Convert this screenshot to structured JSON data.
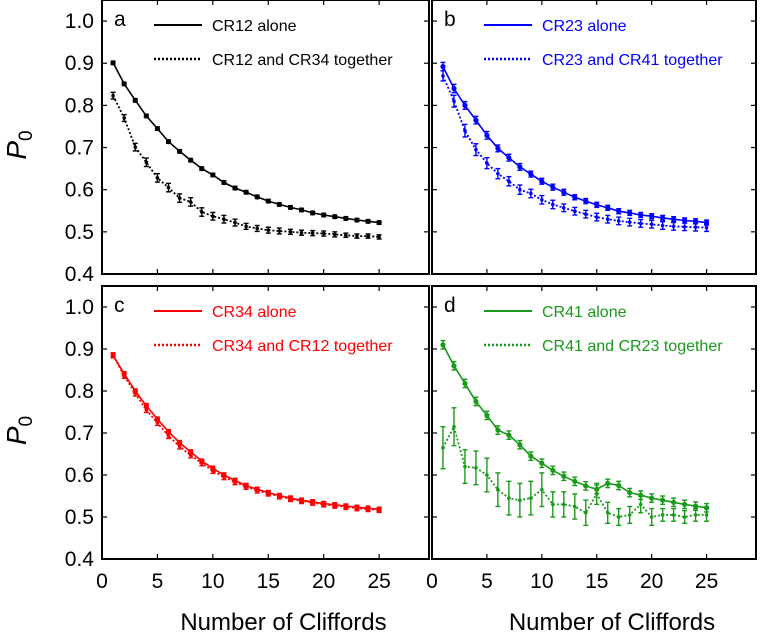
{
  "chart_data": [
    {
      "type": "line",
      "panel_label": "a",
      "color": "#000000",
      "legend_position": "top-right",
      "ylabel": "P",
      "ylabel_sub": "0",
      "xlabel": "",
      "xlim": [
        0,
        29.5
      ],
      "ylim": [
        0.4,
        1.05
      ],
      "x_ticks": [],
      "y_ticks": [
        "1.0",
        "0.9",
        "0.8",
        "0.7",
        "0.6",
        "0.5",
        "0.4"
      ],
      "series": [
        {
          "name": "CR12 alone",
          "style": "solid",
          "x": [
            1,
            2,
            3,
            4,
            5,
            6,
            7,
            8,
            9,
            10,
            11,
            12,
            13,
            14,
            15,
            16,
            17,
            18,
            19,
            20,
            21,
            22,
            23,
            24,
            25
          ],
          "y": [
            0.901,
            0.851,
            0.812,
            0.775,
            0.745,
            0.714,
            0.691,
            0.67,
            0.65,
            0.635,
            0.617,
            0.604,
            0.594,
            0.583,
            0.573,
            0.565,
            0.558,
            0.552,
            0.545,
            0.54,
            0.536,
            0.532,
            0.528,
            0.525,
            0.522
          ],
          "err": [
            0.004,
            0.004,
            0.004,
            0.004,
            0.004,
            0.004,
            0.004,
            0.004,
            0.004,
            0.004,
            0.004,
            0.004,
            0.004,
            0.004,
            0.004,
            0.004,
            0.004,
            0.004,
            0.004,
            0.004,
            0.004,
            0.004,
            0.004,
            0.004,
            0.004
          ]
        },
        {
          "name": "CR12 and CR34 together",
          "style": "dotted",
          "x": [
            1,
            2,
            3,
            4,
            5,
            6,
            7,
            8,
            9,
            10,
            11,
            12,
            13,
            14,
            15,
            16,
            17,
            18,
            19,
            20,
            21,
            22,
            23,
            24,
            25
          ],
          "y": [
            0.823,
            0.77,
            0.701,
            0.665,
            0.628,
            0.605,
            0.58,
            0.571,
            0.547,
            0.537,
            0.53,
            0.522,
            0.513,
            0.508,
            0.504,
            0.502,
            0.5,
            0.498,
            0.497,
            0.496,
            0.494,
            0.492,
            0.49,
            0.49,
            0.488
          ],
          "err": [
            0.008,
            0.008,
            0.009,
            0.01,
            0.01,
            0.01,
            0.01,
            0.01,
            0.01,
            0.009,
            0.009,
            0.008,
            0.007,
            0.007,
            0.007,
            0.007,
            0.006,
            0.006,
            0.006,
            0.006,
            0.006,
            0.005,
            0.005,
            0.005,
            0.005
          ]
        }
      ]
    },
    {
      "type": "line",
      "panel_label": "b",
      "color": "#0000ff",
      "legend_position": "top-right",
      "ylabel": "",
      "xlabel": "",
      "xlim": [
        0,
        29.5
      ],
      "ylim": [
        0.4,
        1.05
      ],
      "x_ticks": [],
      "y_ticks": [],
      "series": [
        {
          "name": "CR23 alone",
          "style": "solid",
          "x": [
            1,
            2,
            3,
            4,
            5,
            6,
            7,
            8,
            9,
            10,
            11,
            12,
            13,
            14,
            15,
            16,
            17,
            18,
            19,
            20,
            21,
            22,
            23,
            24,
            25
          ],
          "y": [
            0.892,
            0.84,
            0.8,
            0.765,
            0.729,
            0.698,
            0.676,
            0.654,
            0.637,
            0.62,
            0.606,
            0.594,
            0.582,
            0.573,
            0.564,
            0.557,
            0.549,
            0.545,
            0.54,
            0.537,
            0.533,
            0.53,
            0.527,
            0.525,
            0.522
          ],
          "err": [
            0.01,
            0.01,
            0.009,
            0.009,
            0.009,
            0.008,
            0.008,
            0.008,
            0.007,
            0.007,
            0.007,
            0.007,
            0.006,
            0.006,
            0.006,
            0.006,
            0.006,
            0.006,
            0.006,
            0.006,
            0.006,
            0.006,
            0.006,
            0.006,
            0.006
          ]
        },
        {
          "name": "CR23 and CR41 together",
          "style": "dotted",
          "x": [
            1,
            2,
            3,
            4,
            5,
            6,
            7,
            8,
            9,
            10,
            11,
            12,
            13,
            14,
            15,
            16,
            17,
            18,
            19,
            20,
            21,
            22,
            23,
            24,
            25
          ],
          "y": [
            0.87,
            0.81,
            0.74,
            0.695,
            0.663,
            0.638,
            0.62,
            0.6,
            0.591,
            0.576,
            0.565,
            0.557,
            0.549,
            0.542,
            0.535,
            0.53,
            0.526,
            0.523,
            0.52,
            0.518,
            0.515,
            0.513,
            0.512,
            0.511,
            0.51
          ],
          "err": [
            0.012,
            0.014,
            0.015,
            0.014,
            0.013,
            0.012,
            0.011,
            0.011,
            0.01,
            0.01,
            0.01,
            0.009,
            0.009,
            0.009,
            0.009,
            0.009,
            0.009,
            0.009,
            0.009,
            0.009,
            0.009,
            0.009,
            0.009,
            0.009,
            0.009
          ]
        }
      ]
    },
    {
      "type": "line",
      "panel_label": "c",
      "color": "#ff0000",
      "legend_position": "top-right",
      "ylabel": "P",
      "ylabel_sub": "0",
      "xlabel": "Number of Cliffords",
      "xlim": [
        0,
        29.5
      ],
      "ylim": [
        0.4,
        1.05
      ],
      "x_ticks": [
        "0",
        "5",
        "10",
        "15",
        "20",
        "25"
      ],
      "y_ticks": [
        "1.0",
        "0.9",
        "0.8",
        "0.7",
        "0.6",
        "0.5",
        "0.4"
      ],
      "series": [
        {
          "name": "CR34 alone",
          "style": "solid",
          "x": [
            1,
            2,
            3,
            4,
            5,
            6,
            7,
            8,
            9,
            10,
            11,
            12,
            13,
            14,
            15,
            16,
            17,
            18,
            19,
            20,
            21,
            22,
            23,
            24,
            25
          ],
          "y": [
            0.885,
            0.841,
            0.8,
            0.765,
            0.733,
            0.703,
            0.677,
            0.655,
            0.633,
            0.616,
            0.6,
            0.587,
            0.575,
            0.566,
            0.558,
            0.551,
            0.545,
            0.54,
            0.536,
            0.532,
            0.529,
            0.526,
            0.523,
            0.521,
            0.518
          ],
          "err": [
            0.005,
            0.005,
            0.005,
            0.005,
            0.005,
            0.005,
            0.005,
            0.005,
            0.005,
            0.005,
            0.005,
            0.005,
            0.005,
            0.005,
            0.005,
            0.005,
            0.005,
            0.005,
            0.005,
            0.005,
            0.005,
            0.005,
            0.005,
            0.005,
            0.005
          ]
        },
        {
          "name": "CR34 and CR12 together",
          "style": "dotted",
          "x": [
            1,
            2,
            3,
            4,
            5,
            6,
            7,
            8,
            9,
            10,
            11,
            12,
            13,
            14,
            15,
            16,
            17,
            18,
            19,
            20,
            21,
            22,
            23,
            24,
            25
          ],
          "y": [
            0.885,
            0.836,
            0.794,
            0.755,
            0.724,
            0.693,
            0.668,
            0.647,
            0.628,
            0.61,
            0.595,
            0.583,
            0.572,
            0.563,
            0.556,
            0.549,
            0.543,
            0.538,
            0.534,
            0.53,
            0.527,
            0.524,
            0.521,
            0.519,
            0.517
          ],
          "err": [
            0.006,
            0.006,
            0.006,
            0.006,
            0.006,
            0.006,
            0.006,
            0.006,
            0.006,
            0.006,
            0.006,
            0.006,
            0.006,
            0.006,
            0.006,
            0.006,
            0.006,
            0.006,
            0.006,
            0.006,
            0.006,
            0.006,
            0.006,
            0.006,
            0.006
          ]
        }
      ]
    },
    {
      "type": "line",
      "panel_label": "d",
      "color": "#1a9a1a",
      "legend_position": "top-right",
      "ylabel": "",
      "xlabel": "Number of Cliffords",
      "xlim": [
        0,
        29.5
      ],
      "ylim": [
        0.4,
        1.05
      ],
      "x_ticks": [
        "0",
        "5",
        "10",
        "15",
        "20",
        "25"
      ],
      "y_ticks": [],
      "series": [
        {
          "name": "CR41 alone",
          "style": "solid",
          "x": [
            1,
            2,
            3,
            4,
            5,
            6,
            7,
            8,
            9,
            10,
            11,
            12,
            13,
            14,
            15,
            16,
            17,
            18,
            19,
            20,
            21,
            22,
            23,
            24,
            25
          ],
          "y": [
            0.91,
            0.86,
            0.818,
            0.775,
            0.742,
            0.707,
            0.695,
            0.672,
            0.645,
            0.628,
            0.611,
            0.597,
            0.585,
            0.574,
            0.566,
            0.58,
            0.575,
            0.558,
            0.552,
            0.545,
            0.54,
            0.535,
            0.53,
            0.526,
            0.522
          ],
          "err": [
            0.01,
            0.01,
            0.01,
            0.01,
            0.01,
            0.01,
            0.01,
            0.01,
            0.01,
            0.01,
            0.01,
            0.01,
            0.01,
            0.01,
            0.01,
            0.01,
            0.01,
            0.01,
            0.01,
            0.01,
            0.01,
            0.01,
            0.01,
            0.01,
            0.01
          ]
        },
        {
          "name": "CR41 and CR23 together",
          "style": "dotted",
          "x": [
            1,
            2,
            3,
            4,
            5,
            6,
            7,
            8,
            9,
            10,
            11,
            12,
            13,
            14,
            15,
            16,
            17,
            18,
            19,
            20,
            21,
            22,
            23,
            24,
            25
          ],
          "y": [
            0.665,
            0.715,
            0.62,
            0.617,
            0.6,
            0.565,
            0.545,
            0.54,
            0.545,
            0.565,
            0.53,
            0.53,
            0.525,
            0.51,
            0.555,
            0.51,
            0.5,
            0.505,
            0.53,
            0.5,
            0.505,
            0.505,
            0.5,
            0.505,
            0.505
          ],
          "err": [
            0.05,
            0.045,
            0.04,
            0.04,
            0.04,
            0.04,
            0.04,
            0.04,
            0.04,
            0.04,
            0.03,
            0.03,
            0.03,
            0.03,
            0.025,
            0.025,
            0.02,
            0.02,
            0.02,
            0.02,
            0.015,
            0.015,
            0.015,
            0.015,
            0.015
          ]
        }
      ]
    }
  ]
}
